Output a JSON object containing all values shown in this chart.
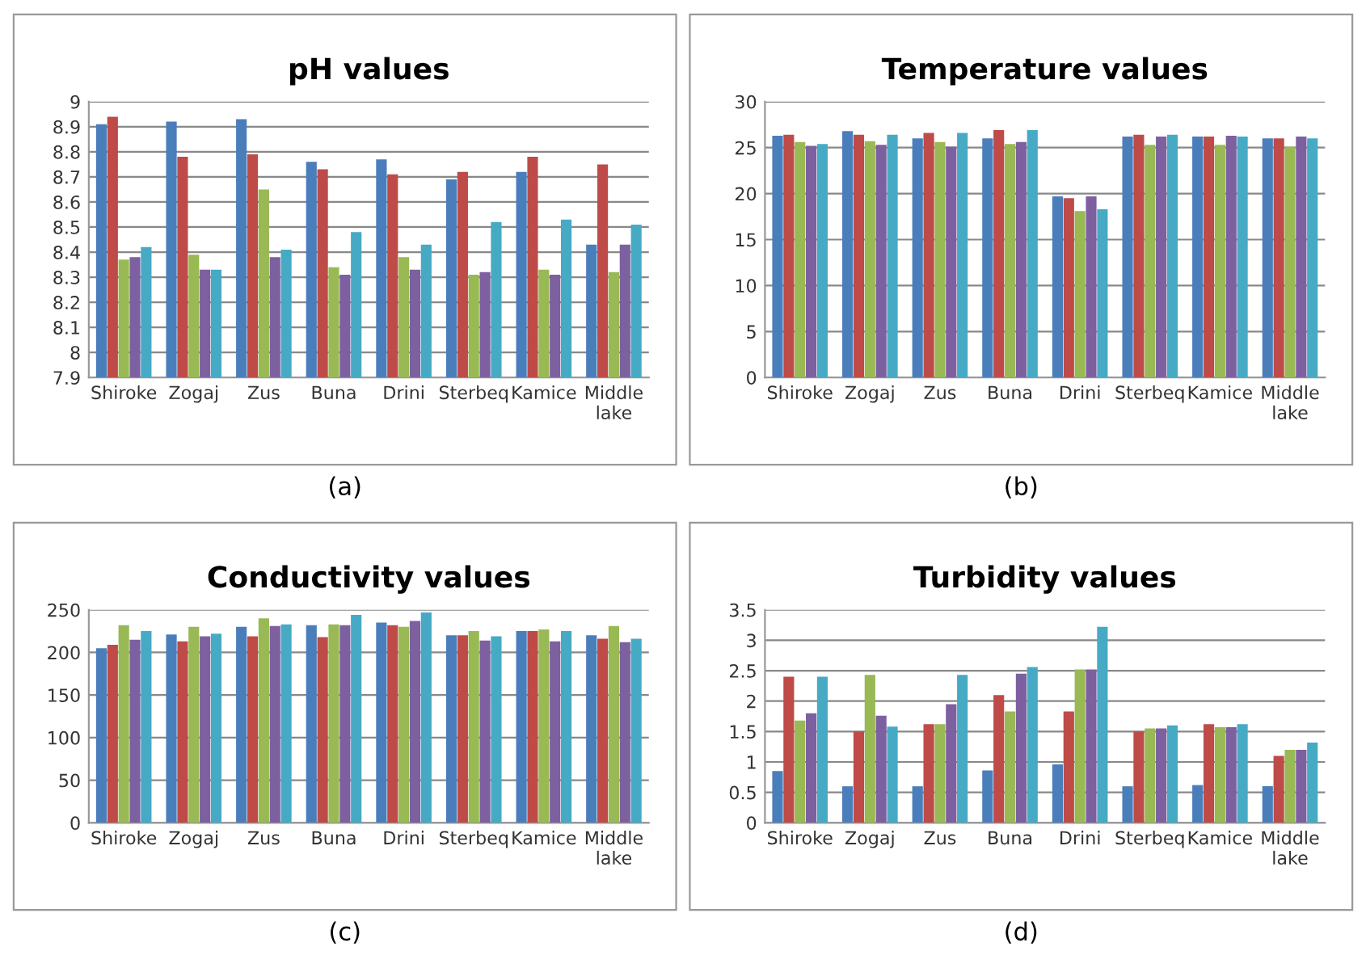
{
  "chart_data": [
    {
      "type": "bar",
      "title": "pH values",
      "categories": [
        "Shiroke",
        "Zogaj",
        "Zus",
        "Buna",
        "Drini",
        "Sterbeq",
        "Kamice",
        "Middle\nlake"
      ],
      "ylim": [
        7.9,
        9
      ],
      "yticks": [
        7.9,
        8,
        8.1,
        8.2,
        8.3,
        8.4,
        8.5,
        8.6,
        8.7,
        8.8,
        8.9,
        9
      ],
      "grid": "y",
      "annotations": [
        "(a)"
      ],
      "series": [
        {
          "color": "#4a7ebb",
          "values": [
            8.91,
            8.92,
            8.93,
            8.76,
            8.77,
            8.69,
            8.72,
            8.43
          ]
        },
        {
          "color": "#be4b48",
          "values": [
            8.94,
            8.78,
            8.79,
            8.73,
            8.71,
            8.72,
            8.78,
            8.75
          ]
        },
        {
          "color": "#98b954",
          "values": [
            8.37,
            8.39,
            8.65,
            8.34,
            8.38,
            8.31,
            8.33,
            8.32
          ]
        },
        {
          "color": "#7d60a0",
          "values": [
            8.38,
            8.33,
            8.38,
            8.31,
            8.33,
            8.32,
            8.31,
            8.43
          ]
        },
        {
          "color": "#46aac5",
          "values": [
            8.42,
            8.33,
            8.41,
            8.48,
            8.43,
            8.52,
            8.53,
            8.51
          ]
        }
      ]
    },
    {
      "type": "bar",
      "title": "Temperature values",
      "categories": [
        "Shiroke",
        "Zogaj",
        "Zus",
        "Buna",
        "Drini",
        "Sterbeq",
        "Kamice",
        "Middle\nlake"
      ],
      "ylim": [
        0,
        30
      ],
      "yticks": [
        0,
        5,
        10,
        15,
        20,
        25,
        30
      ],
      "grid": "y",
      "annotations": [
        "(b)"
      ],
      "series": [
        {
          "color": "#4a7ebb",
          "values": [
            26.3,
            26.8,
            26,
            26,
            19.7,
            26.2,
            26.2,
            26
          ]
        },
        {
          "color": "#be4b48",
          "values": [
            26.4,
            26.4,
            26.6,
            26.9,
            19.5,
            26.4,
            26.2,
            26
          ]
        },
        {
          "color": "#98b954",
          "values": [
            25.6,
            25.7,
            25.6,
            25.4,
            18.1,
            25.3,
            25.3,
            25.1
          ]
        },
        {
          "color": "#7d60a0",
          "values": [
            25.2,
            25.3,
            25.1,
            25.6,
            19.7,
            26.2,
            26.3,
            26.2
          ]
        },
        {
          "color": "#46aac5",
          "values": [
            25.4,
            26.4,
            26.6,
            26.9,
            18.3,
            26.4,
            26.2,
            26
          ]
        }
      ]
    },
    {
      "type": "bar",
      "title": "Conductivity values",
      "categories": [
        "Shiroke",
        "Zogaj",
        "Zus",
        "Buna",
        "Drini",
        "Sterbeq",
        "Kamice",
        "Middle\nlake"
      ],
      "ylim": [
        0,
        250
      ],
      "yticks": [
        0,
        50,
        100,
        150,
        200,
        250
      ],
      "grid": "y",
      "annotations": [
        "(c)"
      ],
      "series": [
        {
          "color": "#4a7ebb",
          "values": [
            205,
            221,
            230,
            232,
            235,
            220,
            225,
            220
          ]
        },
        {
          "color": "#be4b48",
          "values": [
            209,
            213,
            219,
            218,
            232,
            220,
            225,
            216
          ]
        },
        {
          "color": "#98b954",
          "values": [
            232,
            230,
            240,
            233,
            230,
            225,
            227,
            231
          ]
        },
        {
          "color": "#7d60a0",
          "values": [
            215,
            219,
            231,
            232,
            237,
            214,
            213,
            212
          ]
        },
        {
          "color": "#46aac5",
          "values": [
            225,
            222,
            233,
            244,
            247,
            219,
            225,
            216
          ]
        }
      ]
    },
    {
      "type": "bar",
      "title": "Turbidity values",
      "categories": [
        "Shiroke",
        "Zogaj",
        "Zus",
        "Buna",
        "Drini",
        "Sterbeq",
        "Kamice",
        "Middle\nlake"
      ],
      "ylim": [
        0,
        3.5
      ],
      "yticks": [
        0,
        0.5,
        1,
        1.5,
        2,
        2.5,
        3,
        3.5
      ],
      "grid": "y",
      "annotations": [
        "(d)"
      ],
      "series": [
        {
          "color": "#4a7ebb",
          "values": [
            0.85,
            0.6,
            0.6,
            0.86,
            0.96,
            0.6,
            0.62,
            0.6
          ]
        },
        {
          "color": "#be4b48",
          "values": [
            2.4,
            1.5,
            1.62,
            2.1,
            1.83,
            1.5,
            1.62,
            1.1
          ]
        },
        {
          "color": "#98b954",
          "values": [
            1.68,
            2.43,
            1.62,
            1.83,
            2.52,
            1.55,
            1.57,
            1.2
          ]
        },
        {
          "color": "#7d60a0",
          "values": [
            1.8,
            1.76,
            1.95,
            2.45,
            2.52,
            1.55,
            1.57,
            1.2
          ]
        },
        {
          "color": "#46aac5",
          "values": [
            2.4,
            1.58,
            2.43,
            2.56,
            3.22,
            1.6,
            1.62,
            1.32
          ]
        }
      ]
    }
  ]
}
